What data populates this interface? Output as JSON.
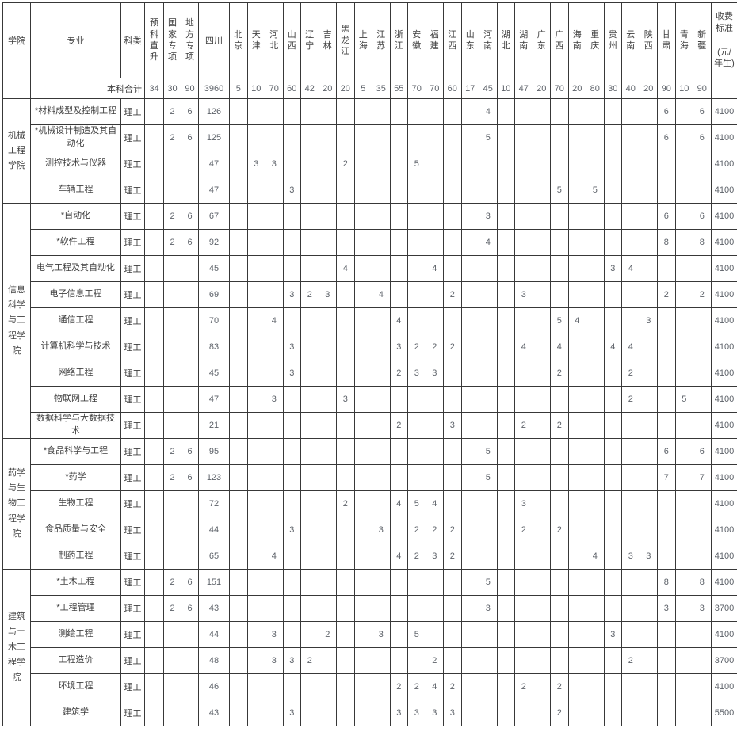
{
  "table": {
    "headers": {
      "college": "学院",
      "major": "专业",
      "category": "科类",
      "fee": "收费标准",
      "fee_unit": "(元/年生)"
    },
    "quota_columns": [
      "预科直升",
      "国家专项",
      "地方专项",
      "四川",
      "北京",
      "天津",
      "河北",
      "山西",
      "辽宁",
      "吉林",
      "黑龙江",
      "上海",
      "江苏",
      "浙江",
      "安徽",
      "福建",
      "江西",
      "山东",
      "河南",
      "湖北",
      "湖南",
      "广东",
      "广西",
      "海南",
      "重庆",
      "贵州",
      "云南",
      "陕西",
      "甘肃",
      "青海",
      "新疆"
    ],
    "total": {
      "label": "本科合计",
      "values": [
        34,
        30,
        90,
        3960,
        5,
        10,
        70,
        60,
        42,
        20,
        20,
        5,
        35,
        55,
        70,
        70,
        60,
        17,
        45,
        10,
        47,
        20,
        70,
        20,
        80,
        30,
        40,
        20,
        90,
        10,
        90
      ]
    },
    "colleges": [
      {
        "name": "机械工程学院",
        "majors": [
          {
            "name": "*材料成型及控制工程",
            "category": "理工",
            "fee": 4100,
            "values": {
              "国家专项": 2,
              "地方专项": 6,
              "四川": 126,
              "河南": 4,
              "甘肃": 6,
              "新疆": 6
            }
          },
          {
            "name": "*机械设计制造及其自动化",
            "category": "理工",
            "fee": 4100,
            "values": {
              "国家专项": 2,
              "地方专项": 6,
              "四川": 125,
              "河南": 5,
              "甘肃": 6,
              "新疆": 6
            }
          },
          {
            "name": "测控技术与仪器",
            "category": "理工",
            "fee": 4100,
            "values": {
              "四川": 47,
              "天津": 3,
              "河北": 3,
              "黑龙江": 2,
              "安徽": 5
            }
          },
          {
            "name": "车辆工程",
            "category": "理工",
            "fee": 4100,
            "values": {
              "四川": 47,
              "山西": 3,
              "广西": 5,
              "重庆": 5
            }
          }
        ]
      },
      {
        "name": "信息科学与工程学院",
        "majors": [
          {
            "name": "*自动化",
            "category": "理工",
            "fee": 4100,
            "values": {
              "国家专项": 2,
              "地方专项": 6,
              "四川": 67,
              "河南": 3,
              "甘肃": 6,
              "新疆": 6
            }
          },
          {
            "name": "*软件工程",
            "category": "理工",
            "fee": 4100,
            "values": {
              "国家专项": 2,
              "地方专项": 6,
              "四川": 92,
              "河南": 4,
              "甘肃": 8,
              "新疆": 8
            }
          },
          {
            "name": "电气工程及其自动化",
            "category": "理工",
            "fee": 4100,
            "values": {
              "四川": 45,
              "黑龙江": 4,
              "福建": 4,
              "贵州": 3,
              "云南": 4
            }
          },
          {
            "name": "电子信息工程",
            "category": "理工",
            "fee": 4100,
            "values": {
              "四川": 69,
              "山西": 3,
              "辽宁": 2,
              "吉林": 3,
              "江苏": 4,
              "江西": 2,
              "湖南": 3,
              "甘肃": 2,
              "新疆": 2
            }
          },
          {
            "name": "通信工程",
            "category": "理工",
            "fee": 4100,
            "values": {
              "四川": 70,
              "河北": 4,
              "浙江": 4,
              "广西": 5,
              "海南": 4,
              "陕西": 3
            }
          },
          {
            "name": "计算机科学与技术",
            "category": "理工",
            "fee": 4100,
            "values": {
              "四川": 83,
              "山西": 3,
              "浙江": 3,
              "安徽": 2,
              "福建": 2,
              "江西": 2,
              "湖南": 4,
              "广西": 4,
              "贵州": 4,
              "云南": 4
            }
          },
          {
            "name": "网络工程",
            "category": "理工",
            "fee": 4100,
            "values": {
              "四川": 45,
              "山西": 3,
              "浙江": 2,
              "安徽": 3,
              "福建": 3,
              "广西": 2,
              "云南": 2
            }
          },
          {
            "name": "物联网工程",
            "category": "理工",
            "fee": 4100,
            "values": {
              "四川": 47,
              "河北": 3,
              "黑龙江": 3,
              "云南": 2,
              "青海": 5
            }
          },
          {
            "name": "数据科学与大数据技术",
            "category": "理工",
            "fee": 4100,
            "values": {
              "四川": 21,
              "浙江": 2,
              "江西": 3,
              "湖南": 2,
              "广西": 2
            }
          }
        ]
      },
      {
        "name": "药学与生物工程学院",
        "majors": [
          {
            "name": "*食品科学与工程",
            "category": "理工",
            "fee": 4100,
            "values": {
              "国家专项": 2,
              "地方专项": 6,
              "四川": 95,
              "河南": 5,
              "甘肃": 6,
              "新疆": 6
            }
          },
          {
            "name": "*药学",
            "category": "理工",
            "fee": 4100,
            "values": {
              "国家专项": 2,
              "地方专项": 6,
              "四川": 123,
              "河南": 5,
              "甘肃": 7,
              "新疆": 7
            }
          },
          {
            "name": "生物工程",
            "category": "理工",
            "fee": 4100,
            "values": {
              "四川": 72,
              "黑龙江": 2,
              "浙江": 4,
              "安徽": 5,
              "福建": 4,
              "湖南": 3
            }
          },
          {
            "name": "食品质量与安全",
            "category": "理工",
            "fee": 4100,
            "values": {
              "四川": 44,
              "山西": 3,
              "江苏": 3,
              "安徽": 2,
              "福建": 2,
              "江西": 2,
              "湖南": 2,
              "广西": 2
            }
          },
          {
            "name": "制药工程",
            "category": "理工",
            "fee": 4100,
            "values": {
              "四川": 65,
              "河北": 4,
              "浙江": 4,
              "安徽": 2,
              "福建": 3,
              "江西": 2,
              "重庆": 4,
              "云南": 3,
              "陕西": 3
            }
          }
        ]
      },
      {
        "name": "建筑与土木工程学院",
        "majors": [
          {
            "name": "*土木工程",
            "category": "理工",
            "fee": 4100,
            "values": {
              "国家专项": 2,
              "地方专项": 6,
              "四川": 151,
              "河南": 5,
              "甘肃": 8,
              "新疆": 8
            }
          },
          {
            "name": "*工程管理",
            "category": "理工",
            "fee": 3700,
            "values": {
              "国家专项": 2,
              "地方专项": 6,
              "四川": 43,
              "河南": 3,
              "甘肃": 3,
              "新疆": 3
            }
          },
          {
            "name": "测绘工程",
            "category": "理工",
            "fee": 4100,
            "values": {
              "四川": 44,
              "河北": 3,
              "吉林": 2,
              "江苏": 3,
              "安徽": 5,
              "贵州": 3
            }
          },
          {
            "name": "工程造价",
            "category": "理工",
            "fee": 3700,
            "values": {
              "四川": 48,
              "河北": 3,
              "山西": 3,
              "辽宁": 2,
              "福建": 2,
              "云南": 2
            }
          },
          {
            "name": "环境工程",
            "category": "理工",
            "fee": 4100,
            "values": {
              "四川": 46,
              "浙江": 2,
              "安徽": 2,
              "福建": 4,
              "江西": 2,
              "湖南": 2,
              "广西": 2
            }
          },
          {
            "name": "建筑学",
            "category": "理工",
            "fee": 5500,
            "values": {
              "四川": 43,
              "山西": 3,
              "浙江": 3,
              "安徽": 3,
              "福建": 3,
              "江西": 3,
              "广西": 2
            }
          }
        ]
      }
    ]
  }
}
